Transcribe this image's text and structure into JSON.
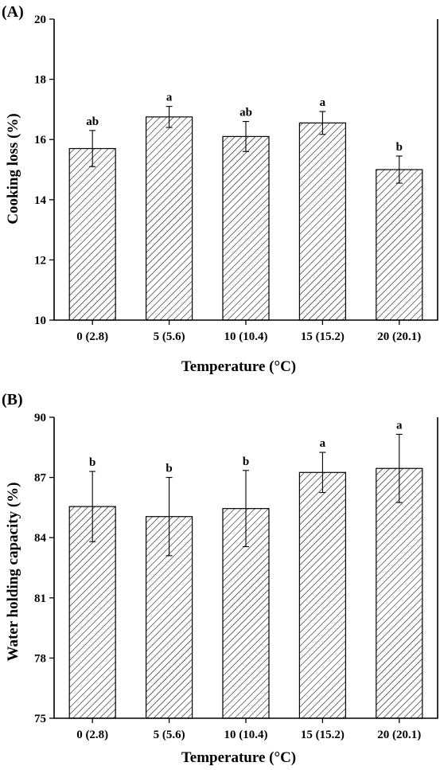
{
  "chart_data": [
    {
      "type": "bar",
      "panel": "(A)",
      "categories": [
        "0 (2.8)",
        "5 (5.6)",
        "10 (10.4)",
        "15 (15.2)",
        "20 (20.1)"
      ],
      "values": [
        15.7,
        16.75,
        16.1,
        16.55,
        15.0
      ],
      "errors": [
        0.6,
        0.35,
        0.5,
        0.38,
        0.45
      ],
      "significance": [
        "ab",
        "a",
        "ab",
        "a",
        "b"
      ],
      "xlabel": "Temperature (°C)",
      "ylabel": "Cooking loss (%)",
      "ylim": [
        10,
        20
      ],
      "yticks": [
        10,
        12,
        14,
        16,
        18,
        20
      ],
      "bar_pattern": "diagonal-hatch",
      "grid": false
    },
    {
      "type": "bar",
      "panel": "(B)",
      "categories": [
        "0 (2.8)",
        "5 (5.6)",
        "10 (10.4)",
        "15 (15.2)",
        "20 (20.1)"
      ],
      "values": [
        85.55,
        85.05,
        85.45,
        87.25,
        87.45
      ],
      "errors": [
        1.75,
        1.95,
        1.9,
        1.0,
        1.7
      ],
      "significance": [
        "b",
        "b",
        "b",
        "a",
        "a"
      ],
      "xlabel": "Temperature (°C)",
      "ylabel": "Water holding capacity (%)",
      "ylim": [
        75,
        90
      ],
      "yticks": [
        75,
        78,
        81,
        84,
        87,
        90
      ],
      "bar_pattern": "diagonal-hatch",
      "grid": false
    }
  ]
}
